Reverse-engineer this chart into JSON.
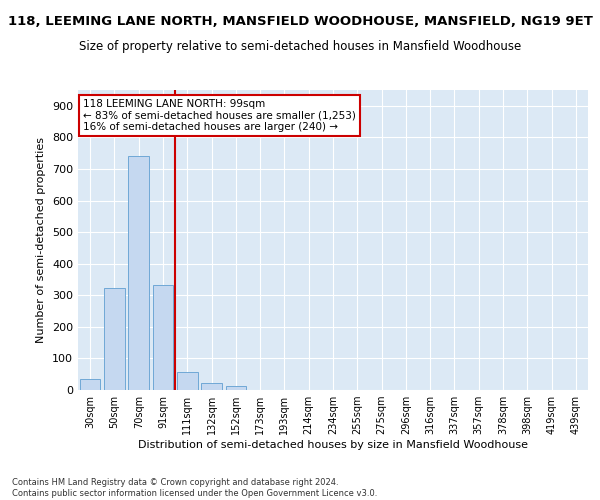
{
  "title_line1": "118, LEEMING LANE NORTH, MANSFIELD WOODHOUSE, MANSFIELD, NG19 9ET",
  "title_line2": "Size of property relative to semi-detached houses in Mansfield Woodhouse",
  "xlabel": "Distribution of semi-detached houses by size in Mansfield Woodhouse",
  "ylabel": "Number of semi-detached properties",
  "footnote": "Contains HM Land Registry data © Crown copyright and database right 2024.\nContains public sector information licensed under the Open Government Licence v3.0.",
  "categories": [
    "30sqm",
    "50sqm",
    "70sqm",
    "91sqm",
    "111sqm",
    "132sqm",
    "152sqm",
    "173sqm",
    "193sqm",
    "214sqm",
    "234sqm",
    "255sqm",
    "275sqm",
    "296sqm",
    "316sqm",
    "337sqm",
    "357sqm",
    "378sqm",
    "398sqm",
    "419sqm",
    "439sqm"
  ],
  "values": [
    35,
    323,
    740,
    333,
    57,
    22,
    13,
    0,
    0,
    0,
    0,
    0,
    0,
    0,
    0,
    0,
    0,
    0,
    0,
    0,
    0
  ],
  "bar_color": "#c5d8f0",
  "bar_edge_color": "#6fa8d6",
  "vline_x": 3.5,
  "vline_color": "#cc0000",
  "annotation_box_text": "118 LEEMING LANE NORTH: 99sqm\n← 83% of semi-detached houses are smaller (1,253)\n16% of semi-detached houses are larger (240) →",
  "annotation_box_color": "#cc0000",
  "annotation_box_facecolor": "white",
  "ylim": [
    0,
    950
  ],
  "yticks": [
    0,
    100,
    200,
    300,
    400,
    500,
    600,
    700,
    800,
    900
  ],
  "plot_bg_color": "#dce9f5",
  "grid_color": "white",
  "title_fontsize": 9.5,
  "subtitle_fontsize": 8.5,
  "footnote_fontsize": 6.0
}
